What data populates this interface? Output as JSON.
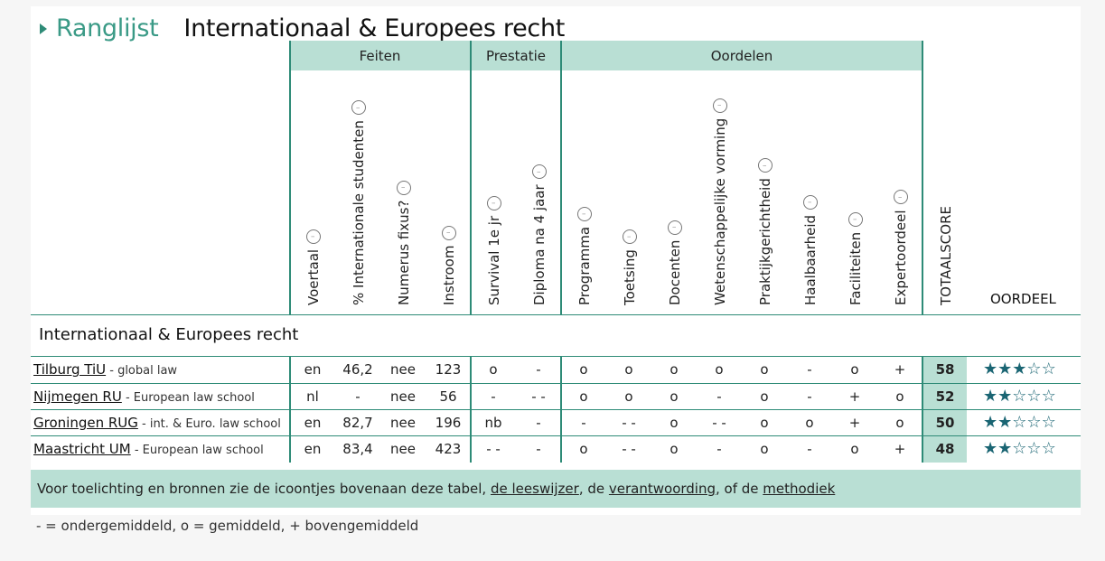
{
  "header": {
    "ranking_label": "Ranglijst",
    "title": "Internationaal & Europees recht"
  },
  "groups": {
    "feiten": "Feiten",
    "prestatie": "Prestatie",
    "oordelen": "Oordelen"
  },
  "columns": {
    "voertaal": "Voertaal",
    "internationale": "% Internationale studenten",
    "numerus": "Numerus fixus?",
    "instroom": "Instroom",
    "survival": "Survival 1e jr",
    "diploma": "Diploma na 4 jaar",
    "programma": "Programma",
    "toetsing": "Toetsing",
    "docenten": "Docenten",
    "wetenschap": "Wetenschappelijke vorming",
    "praktijk": "Praktijkgerichtheid",
    "haalbaarheid": "Haalbaarheid",
    "faciliteiten": "Faciliteiten",
    "expert": "Expertoordeel",
    "totaal": "TOTAALSCORE",
    "oordeel": "OORDEEL"
  },
  "section_title": "Internationaal & Europees recht",
  "rows": [
    {
      "name": "Tilburg TiU",
      "sub": " - global law",
      "voertaal": "en",
      "internationale": "46,2",
      "numerus": "nee",
      "instroom": "123",
      "survival": "o",
      "diploma": "-",
      "programma": "o",
      "toetsing": "o",
      "docenten": "o",
      "wetenschap": "o",
      "praktijk": "o",
      "haalbaarheid": "-",
      "faciliteiten": "o",
      "expert": "+",
      "score": "58",
      "stars": 3
    },
    {
      "name": "Nijmegen RU",
      "sub": " - European law school",
      "voertaal": "nl",
      "internationale": "-",
      "numerus": "nee",
      "instroom": "56",
      "survival": "-",
      "diploma": "- -",
      "programma": "o",
      "toetsing": "o",
      "docenten": "o",
      "wetenschap": "-",
      "praktijk": "o",
      "haalbaarheid": "-",
      "faciliteiten": "+",
      "expert": "o",
      "score": "52",
      "stars": 2
    },
    {
      "name": "Groningen RUG",
      "sub": " - int. & Euro. law school",
      "voertaal": "en",
      "internationale": "82,7",
      "numerus": "nee",
      "instroom": "196",
      "survival": "nb",
      "diploma": "-",
      "programma": "-",
      "toetsing": "- -",
      "docenten": "o",
      "wetenschap": "- -",
      "praktijk": "o",
      "haalbaarheid": "o",
      "faciliteiten": "+",
      "expert": "o",
      "score": "50",
      "stars": 2
    },
    {
      "name": "Maastricht UM",
      "sub": " - European law school",
      "voertaal": "en",
      "internationale": "83,4",
      "numerus": "nee",
      "instroom": "423",
      "survival": "- -",
      "diploma": "-",
      "programma": "o",
      "toetsing": "- -",
      "docenten": "o",
      "wetenschap": "-",
      "praktijk": "o",
      "haalbaarheid": "-",
      "faciliteiten": "o",
      "expert": "+",
      "score": "48",
      "stars": 2
    }
  ],
  "footer": {
    "prefix": "Voor toelichting en bronnen zie de icoontjes bovenaan deze tabel, ",
    "link1": "de leeswijzer",
    "sep1": ", de ",
    "link2": "verantwoording",
    "sep2": ", of de ",
    "link3": "methodiek"
  },
  "legend": "- = ondergemiddeld, o = gemiddeld, + bovengemiddeld",
  "colors": {
    "accent": "#2e8b77",
    "band": "#b9dfd4",
    "star": "#1a6573"
  },
  "icons": {
    "title_arrow": "triangle-right-icon",
    "info": "info-icon",
    "star": "star-icon"
  }
}
